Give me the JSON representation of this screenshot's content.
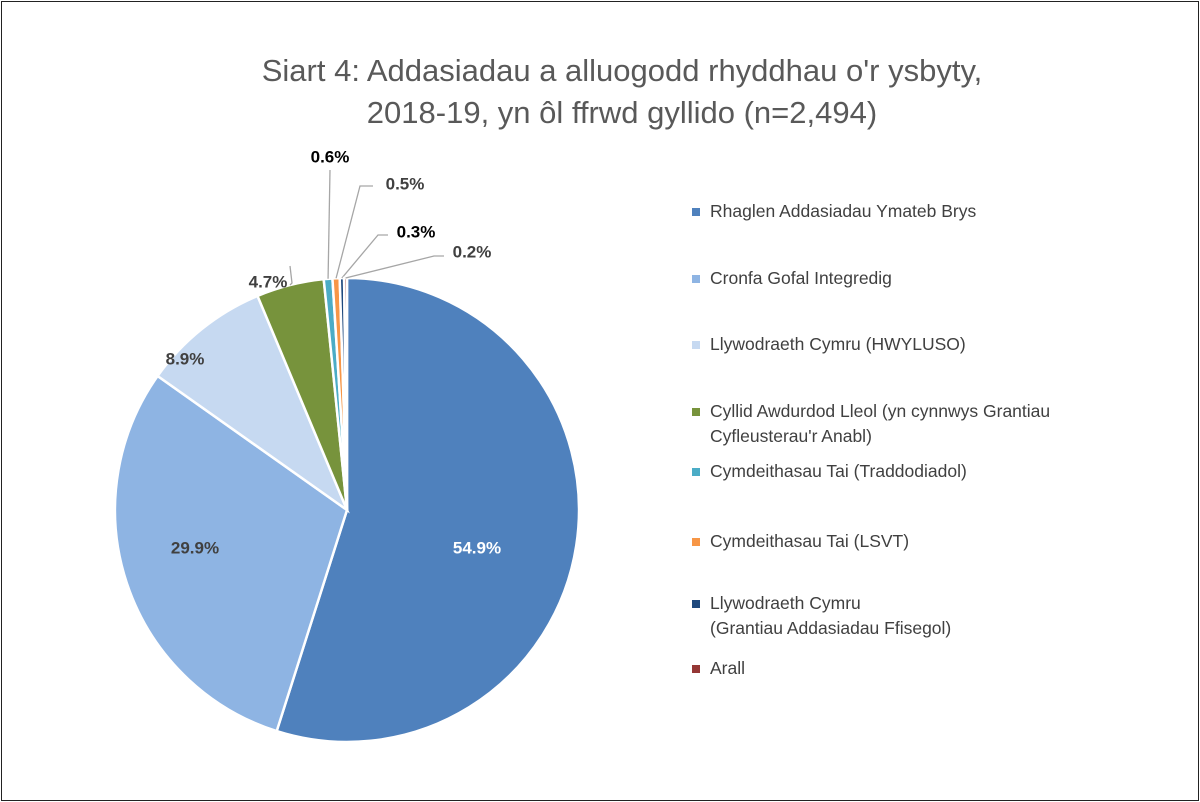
{
  "chart_data": {
    "type": "pie",
    "title": "Siart 4: Addasiadau a alluogodd rhyddhau o'r ysbyty,\n2018-19, yn ôl ffrwd gyllido (n=2,494)",
    "categories": [
      "Rhaglen Addasiadau Ymateb Brys",
      "Cronfa Gofal Integredig",
      "Llywodraeth Cymru (HWYLUSO)",
      "Cyllid Awdurdod Lleol (yn cynnwys Grantiau Cyfleusterau'r Anabl)",
      "Cymdeithasau Tai (Traddodiadol)",
      "Cymdeithasau Tai (LSVT)",
      "Llywodraeth Cymru\n(Grantiau Addasiadau Ffisegol)",
      "Arall"
    ],
    "values": [
      54.9,
      29.9,
      8.9,
      4.7,
      0.6,
      0.5,
      0.3,
      0.2
    ],
    "value_labels": [
      "54.9%",
      "29.9%",
      "8.9%",
      "4.7%",
      "0.6%",
      "0.5%",
      "0.3%",
      "0.2%"
    ],
    "colors": [
      "#4f81bd",
      "#8eb4e3",
      "#c6d9f1",
      "#77933c",
      "#4bacc6",
      "#f79646",
      "#1f497d",
      "#953735"
    ],
    "legend": "right"
  }
}
